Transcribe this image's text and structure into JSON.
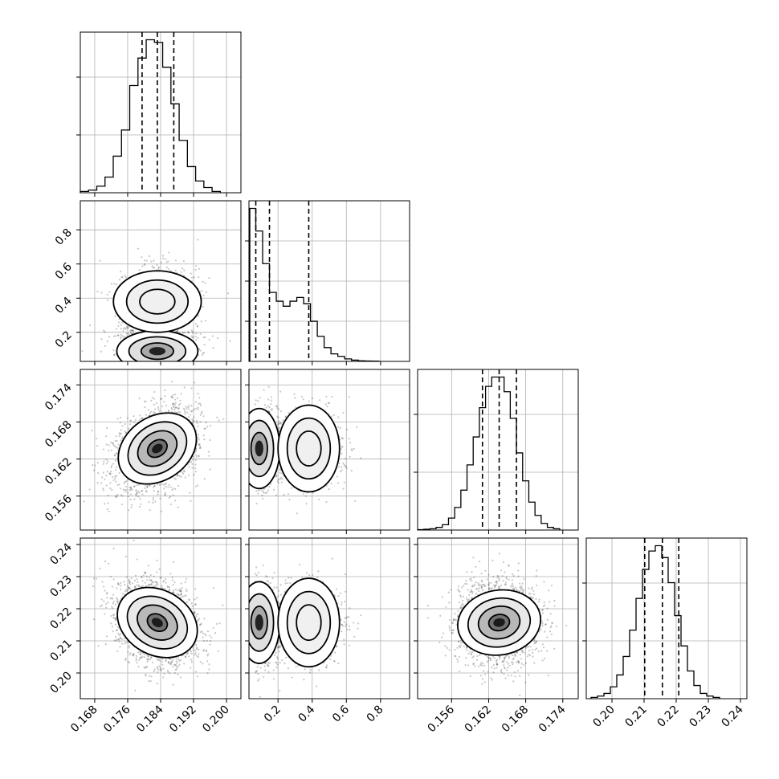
{
  "chart_data": {
    "type": "corner",
    "parameters": [
      {
        "id": "p0",
        "range": [
          0.1645,
          0.2035
        ],
        "ticks": [
          0.168,
          0.176,
          0.184,
          0.192,
          0.2
        ],
        "tick_labels": [
          "0.168",
          "0.176",
          "0.184",
          "0.192",
          "0.200"
        ],
        "mean": 0.1832,
        "std": 0.0041,
        "quantiles": [
          0.1795,
          0.1832,
          0.1872
        ]
      },
      {
        "id": "p1",
        "range": [
          0.03,
          0.97
        ],
        "ticks": [
          0.2,
          0.4,
          0.6,
          0.8
        ],
        "tick_labels": [
          "0.2",
          "0.4",
          "0.6",
          "0.8"
        ],
        "quantiles": [
          0.07,
          0.15,
          0.38
        ]
      },
      {
        "id": "p2",
        "range": [
          0.1505,
          0.1765
        ],
        "ticks": [
          0.156,
          0.162,
          0.168,
          0.174
        ],
        "tick_labels": [
          "0.156",
          "0.162",
          "0.168",
          "0.174"
        ],
        "mean": 0.1637,
        "std": 0.0027,
        "quantiles": [
          0.161,
          0.1637,
          0.1665
        ]
      },
      {
        "id": "p3",
        "range": [
          0.192,
          0.242
        ],
        "ticks": [
          0.2,
          0.21,
          0.22,
          0.23,
          0.24
        ],
        "tick_labels": [
          "0.20",
          "0.21",
          "0.22",
          "0.23",
          "0.24"
        ],
        "mean": 0.2157,
        "std": 0.0053,
        "quantiles": [
          0.2102,
          0.2157,
          0.2208
        ]
      }
    ],
    "histograms": [
      {
        "param": "p0",
        "bins": [
          0.1645,
          0.1665,
          0.1685,
          0.1705,
          0.1725,
          0.1745,
          0.1765,
          0.1785,
          0.1805,
          0.1825,
          0.1845,
          0.1865,
          0.1885,
          0.1905,
          0.1925,
          0.1945,
          0.1965,
          0.1985
        ],
        "counts": [
          1,
          2,
          5,
          12,
          28,
          48,
          82,
          103,
          117,
          115,
          96,
          68,
          40,
          20,
          9,
          4,
          1
        ]
      },
      {
        "param": "p1",
        "bins": [
          0.035,
          0.07,
          0.11,
          0.15,
          0.19,
          0.23,
          0.27,
          0.31,
          0.35,
          0.39,
          0.43,
          0.47,
          0.51,
          0.55,
          0.59,
          0.63,
          0.67,
          0.71,
          0.75,
          0.79
        ],
        "counts": [
          122,
          104,
          78,
          55,
          48,
          44,
          48,
          51,
          46,
          32,
          20,
          11,
          6,
          4,
          2,
          1,
          0.5,
          0.3,
          0.2
        ]
      },
      {
        "param": "p2",
        "bins": [
          0.1505,
          0.1515,
          0.1525,
          0.1535,
          0.1545,
          0.1555,
          0.1565,
          0.1575,
          0.1585,
          0.1595,
          0.1605,
          0.1615,
          0.1625,
          0.1635,
          0.1645,
          0.1655,
          0.1665,
          0.1675,
          0.1685,
          0.1695,
          0.1705,
          0.1715,
          0.1725,
          0.1735
        ],
        "counts": [
          0.3,
          0.6,
          1,
          2,
          4,
          9,
          17,
          30,
          49,
          70,
          92,
          108,
          115,
          115,
          104,
          84,
          58,
          37,
          21,
          11,
          5,
          2,
          1
        ]
      },
      {
        "param": "p3",
        "bins": [
          0.1935,
          0.1955,
          0.1975,
          0.1995,
          0.2015,
          0.2035,
          0.2055,
          0.2075,
          0.2095,
          0.2115,
          0.2135,
          0.2155,
          0.2175,
          0.2195,
          0.2215,
          0.2235,
          0.2255,
          0.2275,
          0.2295,
          0.2315,
          0.2335
        ],
        "counts": [
          1,
          2,
          4,
          9,
          18,
          32,
          52,
          76,
          98,
          112,
          116,
          107,
          88,
          63,
          40,
          21,
          10,
          4,
          2,
          1
        ]
      }
    ],
    "scatter_panels": [
      {
        "x": "p0",
        "y": "p1"
      },
      {
        "x": "p0",
        "y": "p2"
      },
      {
        "x": "p1",
        "y": "p2"
      },
      {
        "x": "p0",
        "y": "p3"
      },
      {
        "x": "p1",
        "y": "p3"
      },
      {
        "x": "p2",
        "y": "p3"
      }
    ],
    "contour_levels": [
      0.5,
      1.0,
      1.5,
      2.0
    ],
    "grid": true,
    "colors": {
      "line": "#000000",
      "grid": "#b0b0b0",
      "points": "#000000"
    }
  }
}
